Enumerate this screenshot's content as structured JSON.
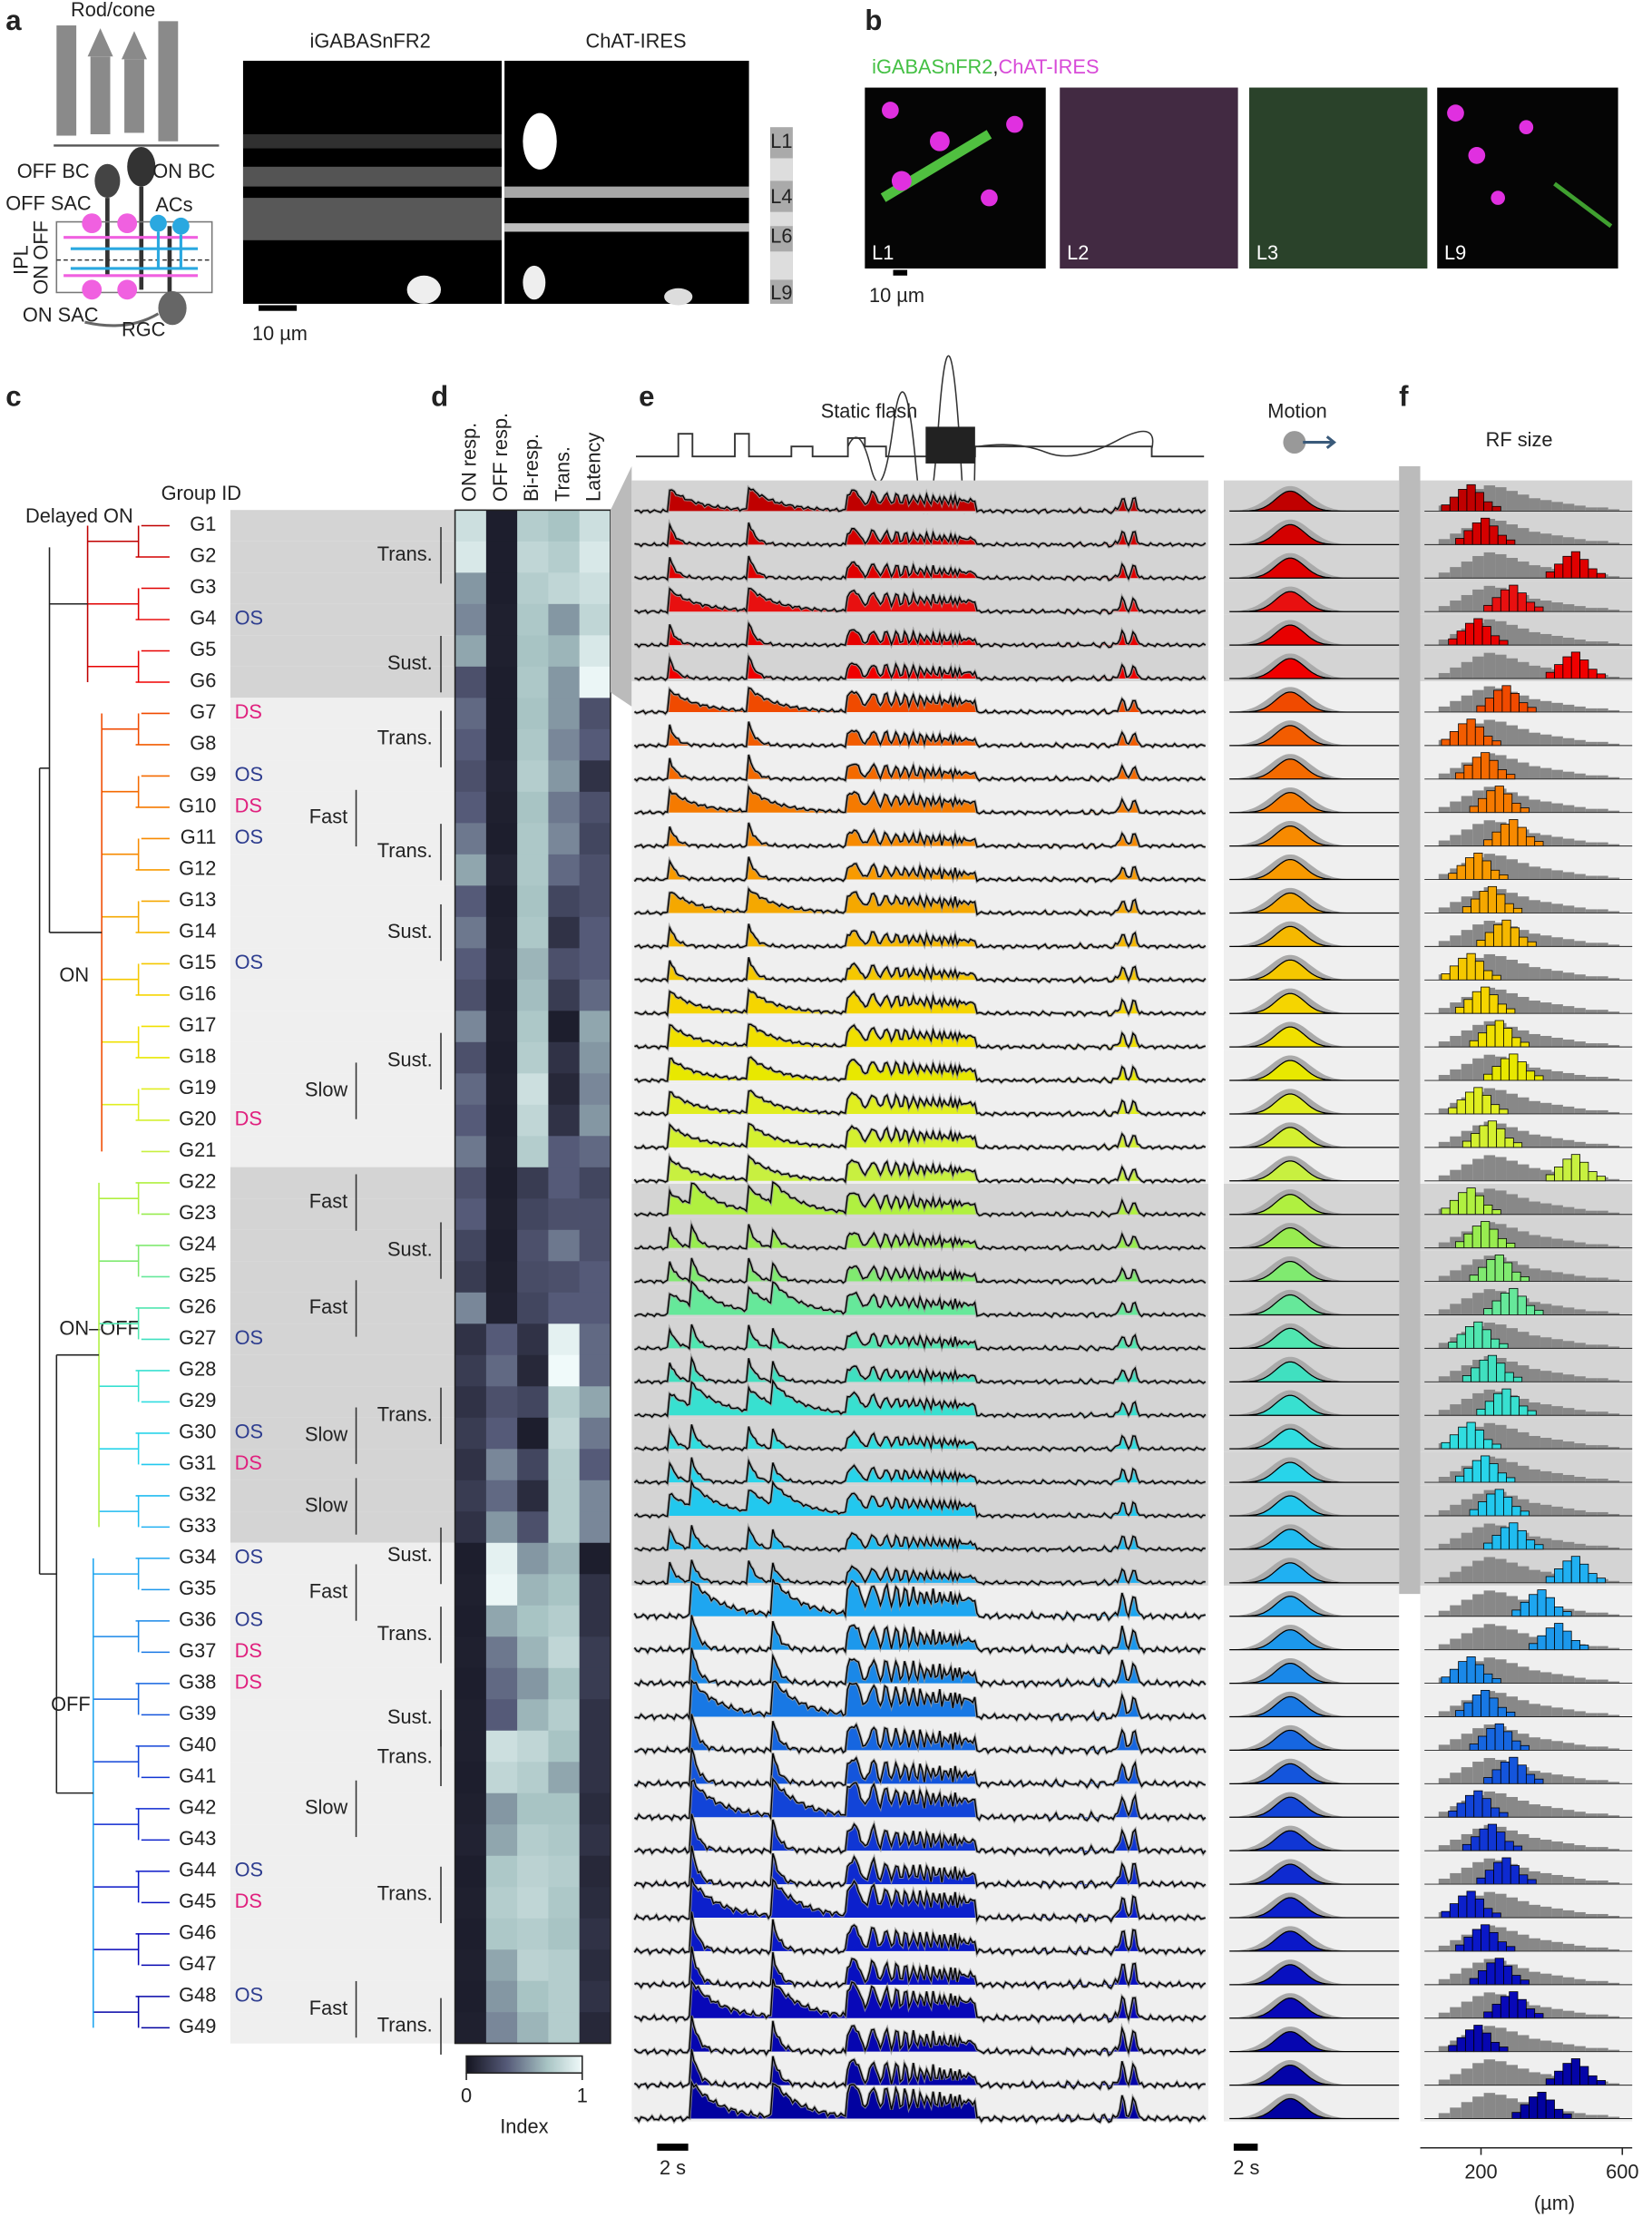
{
  "panel_labels": [
    "a",
    "b",
    "c",
    "d",
    "e",
    "f"
  ],
  "a": {
    "schematic_labels": [
      "Rod/cone",
      "OFF BC",
      "ON BC",
      "OFF SAC",
      "ACs",
      "IPL",
      "OFF",
      "ON",
      "ON SAC",
      "RGC"
    ],
    "image_titles": [
      "iGABASnFR2",
      "ChAT-IRES"
    ],
    "layers": [
      "L1",
      "L4",
      "L6",
      "L9"
    ],
    "scale_bar": "10 µm"
  },
  "b": {
    "legend": [
      {
        "text": "iGABASnFR2",
        "color": "#44c044"
      },
      {
        "text": ",",
        "color": "#222222"
      },
      {
        "text": "ChAT-IRES",
        "color": "#d84ad8"
      }
    ],
    "fields": [
      "L1",
      "L2",
      "L3",
      "L9"
    ],
    "scale_bar": "10 µm"
  },
  "c": {
    "group_id_header": "Group ID",
    "clusters": [
      "Delayed ON",
      "ON",
      "ON–OFF",
      "OFF"
    ],
    "tag_colors": {
      "OS": "#2e3d8f",
      "DS": "#e0207e"
    },
    "groups": [
      {
        "id": "G1",
        "color": "#c00000"
      },
      {
        "id": "G2",
        "color": "#d40000"
      },
      {
        "id": "G3",
        "color": "#e00000"
      },
      {
        "id": "G4",
        "tag": "OS",
        "color": "#e81010"
      },
      {
        "id": "G5",
        "color": "#e80000"
      },
      {
        "id": "G6",
        "color": "#f00000"
      },
      {
        "id": "G7",
        "tag": "DS",
        "color": "#f04a00"
      },
      {
        "id": "G8",
        "color": "#f25c00"
      },
      {
        "id": "G9",
        "tag": "OS",
        "color": "#f46a00"
      },
      {
        "id": "G10",
        "tag": "DS",
        "color": "#f57a00"
      },
      {
        "id": "G11",
        "tag": "OS",
        "color": "#f78a00"
      },
      {
        "id": "G12",
        "color": "#f89a00"
      },
      {
        "id": "G13",
        "color": "#f5a800"
      },
      {
        "id": "G14",
        "color": "#f5b800"
      },
      {
        "id": "G15",
        "tag": "OS",
        "color": "#f5c800"
      },
      {
        "id": "G16",
        "color": "#f5d500"
      },
      {
        "id": "G17",
        "color": "#f0e000"
      },
      {
        "id": "G18",
        "color": "#e8e800"
      },
      {
        "id": "G19",
        "color": "#e0ee20"
      },
      {
        "id": "G20",
        "tag": "DS",
        "color": "#d4f030"
      },
      {
        "id": "G21",
        "color": "#c8f040"
      },
      {
        "id": "G22",
        "color": "#b0f040"
      },
      {
        "id": "G23",
        "color": "#98ec50"
      },
      {
        "id": "G24",
        "color": "#80ea70"
      },
      {
        "id": "G25",
        "color": "#66e89a"
      },
      {
        "id": "G26",
        "color": "#50e6b0"
      },
      {
        "id": "G27",
        "tag": "OS",
        "color": "#40e0c0"
      },
      {
        "id": "G28",
        "color": "#38e0d0"
      },
      {
        "id": "G29",
        "color": "#30dde0"
      },
      {
        "id": "G30",
        "tag": "OS",
        "color": "#28d4ea"
      },
      {
        "id": "G31",
        "tag": "DS",
        "color": "#22c8ee"
      },
      {
        "id": "G32",
        "color": "#20bcf0"
      },
      {
        "id": "G33",
        "color": "#20b0f2"
      },
      {
        "id": "G34",
        "tag": "OS",
        "color": "#1ea6f0"
      },
      {
        "id": "G35",
        "color": "#1c98ec"
      },
      {
        "id": "G36",
        "tag": "OS",
        "color": "#1a88e8"
      },
      {
        "id": "G37",
        "tag": "DS",
        "color": "#1878e4"
      },
      {
        "id": "G38",
        "tag": "DS",
        "color": "#1666e0"
      },
      {
        "id": "G39",
        "color": "#1455dc"
      },
      {
        "id": "G40",
        "color": "#1244d8"
      },
      {
        "id": "G41",
        "color": "#1036d4"
      },
      {
        "id": "G42",
        "color": "#0e2ad0"
      },
      {
        "id": "G43",
        "color": "#0c20cc"
      },
      {
        "id": "G44",
        "tag": "OS",
        "color": "#0a18c8"
      },
      {
        "id": "G45",
        "tag": "DS",
        "color": "#0810c0"
      },
      {
        "id": "G46",
        "color": "#0808b8"
      },
      {
        "id": "G47",
        "color": "#0606b0"
      },
      {
        "id": "G48",
        "tag": "OS",
        "color": "#0404a8"
      },
      {
        "id": "G49",
        "color": "#0202a0"
      }
    ],
    "kinetics": [
      "Trans.",
      "Sust.",
      "Trans.",
      "Fast",
      "Trans.",
      "Sust.",
      "Sust.",
      "Slow",
      "Fast",
      "Sust.",
      "Fast",
      "Trans.",
      "Slow",
      "Slow",
      "Sust.",
      "Fast",
      "Trans.",
      "Sust.",
      "Trans.",
      "Slow",
      "Trans.",
      "Fast",
      "Trans."
    ]
  },
  "d": {
    "columns": [
      "ON resp.",
      "OFF resp.",
      "Bi-resp.",
      "Trans.",
      "Latency"
    ],
    "values": [
      [
        0.85,
        0.05,
        0.75,
        0.7,
        0.85
      ],
      [
        0.9,
        0.05,
        0.8,
        0.75,
        0.9
      ],
      [
        0.55,
        0.05,
        0.75,
        0.8,
        0.85
      ],
      [
        0.5,
        0.06,
        0.72,
        0.55,
        0.8
      ],
      [
        0.6,
        0.06,
        0.7,
        0.65,
        0.9
      ],
      [
        0.3,
        0.05,
        0.72,
        0.55,
        0.98
      ],
      [
        0.4,
        0.05,
        0.7,
        0.55,
        0.3
      ],
      [
        0.35,
        0.05,
        0.72,
        0.5,
        0.35
      ],
      [
        0.3,
        0.07,
        0.75,
        0.55,
        0.15
      ],
      [
        0.35,
        0.06,
        0.7,
        0.45,
        0.3
      ],
      [
        0.45,
        0.05,
        0.72,
        0.5,
        0.25
      ],
      [
        0.6,
        0.08,
        0.72,
        0.4,
        0.3
      ],
      [
        0.35,
        0.05,
        0.7,
        0.25,
        0.3
      ],
      [
        0.45,
        0.06,
        0.72,
        0.15,
        0.35
      ],
      [
        0.35,
        0.07,
        0.65,
        0.3,
        0.35
      ],
      [
        0.3,
        0.05,
        0.68,
        0.2,
        0.4
      ],
      [
        0.5,
        0.06,
        0.72,
        0.05,
        0.6
      ],
      [
        0.3,
        0.05,
        0.75,
        0.15,
        0.55
      ],
      [
        0.4,
        0.06,
        0.85,
        0.1,
        0.5
      ],
      [
        0.35,
        0.05,
        0.8,
        0.15,
        0.55
      ],
      [
        0.45,
        0.06,
        0.75,
        0.35,
        0.4
      ],
      [
        0.3,
        0.05,
        0.2,
        0.35,
        0.25
      ],
      [
        0.35,
        0.06,
        0.25,
        0.3,
        0.3
      ],
      [
        0.25,
        0.05,
        0.3,
        0.45,
        0.3
      ],
      [
        0.2,
        0.06,
        0.28,
        0.3,
        0.35
      ],
      [
        0.5,
        0.07,
        0.25,
        0.35,
        0.35
      ],
      [
        0.15,
        0.35,
        0.15,
        0.95,
        0.4
      ],
      [
        0.2,
        0.4,
        0.1,
        1.0,
        0.4
      ],
      [
        0.15,
        0.3,
        0.25,
        0.75,
        0.6
      ],
      [
        0.2,
        0.35,
        0.05,
        0.8,
        0.45
      ],
      [
        0.15,
        0.5,
        0.25,
        0.75,
        0.35
      ],
      [
        0.2,
        0.4,
        0.12,
        0.75,
        0.5
      ],
      [
        0.15,
        0.55,
        0.3,
        0.75,
        0.5
      ],
      [
        0.05,
        0.95,
        0.55,
        0.65,
        0.05
      ],
      [
        0.06,
        0.98,
        0.65,
        0.7,
        0.15
      ],
      [
        0.05,
        0.6,
        0.7,
        0.75,
        0.15
      ],
      [
        0.06,
        0.45,
        0.65,
        0.8,
        0.2
      ],
      [
        0.05,
        0.4,
        0.55,
        0.7,
        0.2
      ],
      [
        0.06,
        0.35,
        0.65,
        0.75,
        0.15
      ],
      [
        0.06,
        0.85,
        0.8,
        0.7,
        0.15
      ],
      [
        0.05,
        0.8,
        0.75,
        0.6,
        0.15
      ],
      [
        0.06,
        0.55,
        0.7,
        0.7,
        0.12
      ],
      [
        0.07,
        0.6,
        0.75,
        0.72,
        0.15
      ],
      [
        0.05,
        0.72,
        0.78,
        0.75,
        0.1
      ],
      [
        0.06,
        0.75,
        0.8,
        0.72,
        0.12
      ],
      [
        0.05,
        0.72,
        0.75,
        0.7,
        0.15
      ],
      [
        0.06,
        0.6,
        0.78,
        0.75,
        0.12
      ],
      [
        0.05,
        0.55,
        0.7,
        0.75,
        0.15
      ],
      [
        0.06,
        0.5,
        0.65,
        0.75,
        0.1
      ]
    ],
    "colorbar": {
      "ticks": [
        0,
        1
      ],
      "label": "Index"
    }
  },
  "e": {
    "stimulus": "Static flash",
    "motion": "Motion",
    "scale_bars": [
      "2 s",
      "2 s"
    ]
  },
  "f": {
    "title": "RF size",
    "xlim": [
      0,
      620
    ],
    "xticks": [
      200,
      600
    ],
    "unit": "(µm)"
  }
}
